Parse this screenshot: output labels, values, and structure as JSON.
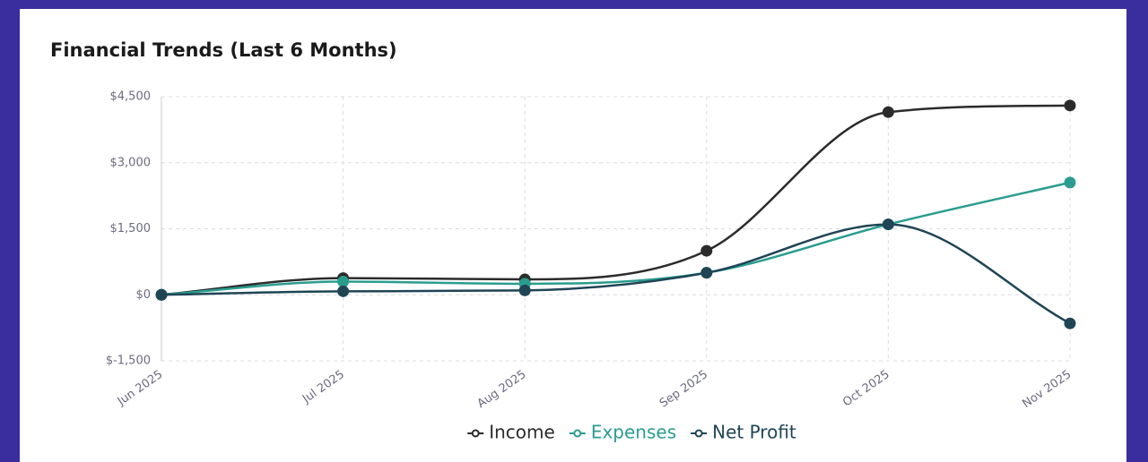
{
  "chart_data": {
    "type": "line",
    "title": "Financial Trends (Last 6 Months)",
    "categories": [
      "Jun 2025",
      "Jul 2025",
      "Aug 2025",
      "Sep 2025",
      "Oct 2025",
      "Nov 2025"
    ],
    "series": [
      {
        "name": "Income",
        "color": "#2b2b2b",
        "values": [
          0,
          380,
          350,
          1000,
          4150,
          4300
        ]
      },
      {
        "name": "Expenses",
        "color": "#2a9d8f",
        "values": [
          0,
          300,
          250,
          500,
          1600,
          2550
        ]
      },
      {
        "name": "Net Profit",
        "color": "#1f4555",
        "values": [
          0,
          80,
          100,
          500,
          1600,
          -650
        ]
      }
    ],
    "ylim": [
      -1500,
      4500
    ],
    "yticks": [
      {
        "value": -1500,
        "label": "$-1,500"
      },
      {
        "value": 0,
        "label": "$0"
      },
      {
        "value": 1500,
        "label": "$1,500"
      },
      {
        "value": 3000,
        "label": "$3,000"
      },
      {
        "value": 4500,
        "label": "$4,500"
      }
    ],
    "grid": true,
    "legend": "bottom"
  }
}
